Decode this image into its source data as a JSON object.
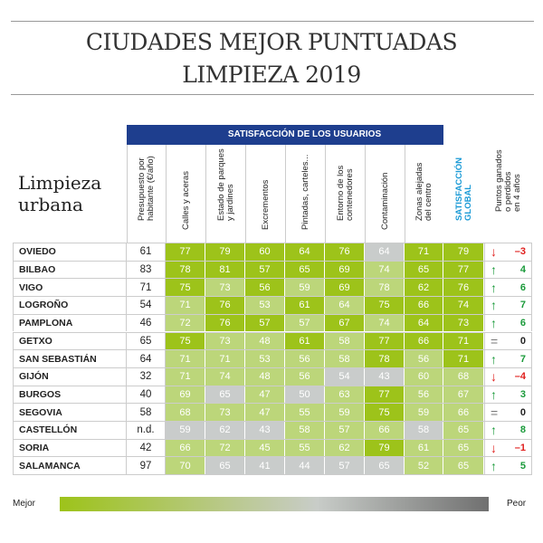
{
  "title_line1": "CIUDADES MEJOR PUNTUADAS",
  "title_line2": "LIMPIEZA 2019",
  "chart_data": {
    "type": "table",
    "subtitle": "Limpieza urbana",
    "group_header": "SATISFACCIÓN DE LOS USUARIOS",
    "columns": [
      "Presupuesto por\nhabitante (€/año)",
      "Calles y aceras",
      "Estado de parques\ny jardines",
      "Excrementos",
      "Pintadas, carteles...",
      "Entorno de los\ncontenedores",
      "Contaminación",
      "Zonas alejadas\ndel centro",
      "SATISFACCIÓN\nGLOBAL",
      "Puntos ganados\no perdidos\nen 4 años"
    ],
    "rows": [
      {
        "city": "OVIEDO",
        "budget": "61",
        "scores": [
          77,
          79,
          60,
          64,
          76,
          64,
          71
        ],
        "global": 79,
        "change": -3
      },
      {
        "city": "BILBAO",
        "budget": "83",
        "scores": [
          78,
          81,
          57,
          65,
          69,
          74,
          65
        ],
        "global": 77,
        "change": 4
      },
      {
        "city": "VIGO",
        "budget": "71",
        "scores": [
          75,
          73,
          56,
          59,
          69,
          78,
          62
        ],
        "global": 76,
        "change": 6
      },
      {
        "city": "LOGROÑO",
        "budget": "54",
        "scores": [
          71,
          76,
          53,
          61,
          64,
          75,
          66
        ],
        "global": 74,
        "change": 7
      },
      {
        "city": "PAMPLONA",
        "budget": "46",
        "scores": [
          72,
          76,
          57,
          57,
          67,
          74,
          64
        ],
        "global": 73,
        "change": 6
      },
      {
        "city": "GETXO",
        "budget": "65",
        "scores": [
          75,
          73,
          48,
          61,
          58,
          77,
          66
        ],
        "global": 71,
        "change": 0
      },
      {
        "city": "SAN SEBASTIÁN",
        "budget": "64",
        "scores": [
          71,
          71,
          53,
          56,
          58,
          78,
          56
        ],
        "global": 71,
        "change": 7
      },
      {
        "city": "GIJÓN",
        "budget": "32",
        "scores": [
          71,
          74,
          48,
          56,
          54,
          43,
          60
        ],
        "global": 68,
        "change": -4
      },
      {
        "city": "BURGOS",
        "budget": "40",
        "scores": [
          69,
          65,
          47,
          50,
          63,
          77,
          56
        ],
        "global": 67,
        "change": 3
      },
      {
        "city": "SEGOVIA",
        "budget": "58",
        "scores": [
          68,
          73,
          47,
          55,
          59,
          75,
          59
        ],
        "global": 66,
        "change": 0
      },
      {
        "city": "CASTELLÓN",
        "budget": "n.d.",
        "scores": [
          59,
          62,
          43,
          58,
          57,
          66,
          58
        ],
        "global": 65,
        "change": 8
      },
      {
        "city": "SORIA",
        "budget": "42",
        "scores": [
          66,
          72,
          45,
          55,
          62,
          79,
          61
        ],
        "global": 65,
        "change": -1
      },
      {
        "city": "SALAMANCA",
        "budget": "97",
        "scores": [
          70,
          65,
          41,
          44,
          57,
          65,
          52
        ],
        "global": 65,
        "change": 5
      }
    ],
    "cell_levels": [
      "dddddgdd",
      "dddddldd",
      "dldldldd",
      "ldldlddd",
      "lddldldd",
      "dlldlddd",
      "llllldld",
      "llllggll",
      "lglgldll",
      "llllldll",
      "ggglllgl",
      "llllldll",
      "lgggggl l"
    ],
    "legend": {
      "left": "Mejor",
      "right": "Peor"
    }
  },
  "colors": {
    "dark": "#9dc31a",
    "light": "#bcd67a",
    "gray": "#c9cccb",
    "header": "#1e3e8e",
    "global_text": "#1a9ad6",
    "up": "#1a9a3a",
    "down": "#e0201e",
    "equal": "#777777"
  }
}
